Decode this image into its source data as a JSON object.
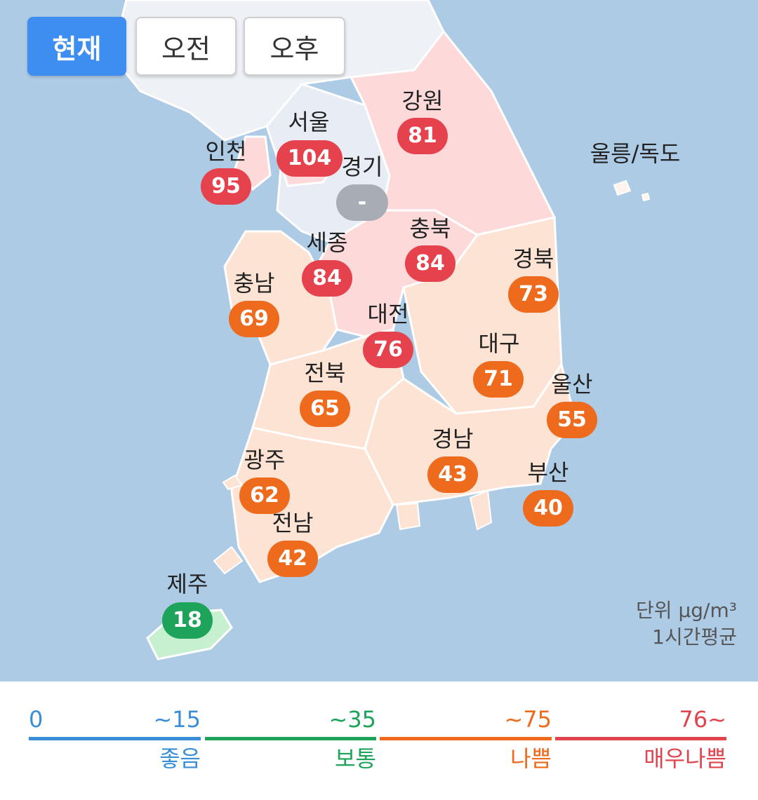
{
  "tabs": [
    {
      "label": "현재",
      "active": true
    },
    {
      "label": "오전",
      "active": false
    },
    {
      "label": "오후",
      "active": false
    }
  ],
  "regions": {
    "seoul": {
      "name": "서울",
      "value": "104",
      "level": "very_bad"
    },
    "incheon": {
      "name": "인천",
      "value": "95",
      "level": "very_bad"
    },
    "gyeonggi": {
      "name": "경기",
      "value": "-",
      "level": "none"
    },
    "gangwon": {
      "name": "강원",
      "value": "81",
      "level": "very_bad"
    },
    "ulleung": {
      "name": "울릉/독도"
    },
    "sejong": {
      "name": "세종",
      "value": "84",
      "level": "very_bad"
    },
    "chungbuk": {
      "name": "충북",
      "value": "84",
      "level": "very_bad"
    },
    "chungnam": {
      "name": "충남",
      "value": "69",
      "level": "bad"
    },
    "daejeon": {
      "name": "대전",
      "value": "76",
      "level": "very_bad"
    },
    "gyeongbuk": {
      "name": "경북",
      "value": "73",
      "level": "bad"
    },
    "daegu": {
      "name": "대구",
      "value": "71",
      "level": "bad"
    },
    "jeonbuk": {
      "name": "전북",
      "value": "65",
      "level": "bad"
    },
    "ulsan": {
      "name": "울산",
      "value": "55",
      "level": "bad"
    },
    "gyeongnam": {
      "name": "경남",
      "value": "43",
      "level": "bad"
    },
    "gwangju": {
      "name": "광주",
      "value": "62",
      "level": "bad"
    },
    "busan": {
      "name": "부산",
      "value": "40",
      "level": "bad"
    },
    "jeonnam": {
      "name": "전남",
      "value": "42",
      "level": "bad"
    },
    "jeju": {
      "name": "제주",
      "value": "18",
      "level": "normal"
    }
  },
  "unit": {
    "line1": "단위 μg/m³",
    "line2": "1시간평균"
  },
  "legend": {
    "zero": "0",
    "items": [
      {
        "range": "~15",
        "label": "좋음",
        "color": "#3a8ed8"
      },
      {
        "range": "~35",
        "label": "보통",
        "color": "#1ea45a"
      },
      {
        "range": "~75",
        "label": "나쁨",
        "color": "#ee6a1c"
      },
      {
        "range": "76~",
        "label": "매우나쁨",
        "color": "#e0454f"
      }
    ]
  },
  "colors": {
    "very_bad": "#e5424e",
    "bad": "#ee6a1c",
    "normal": "#1ea45a",
    "none": "#a8adb5",
    "sea": "#aecbe6",
    "fill_very_bad": "#fdd9da",
    "fill_bad": "#fde3d4",
    "fill_normal": "#c6f0cf",
    "fill_none": "#e8edf5"
  }
}
